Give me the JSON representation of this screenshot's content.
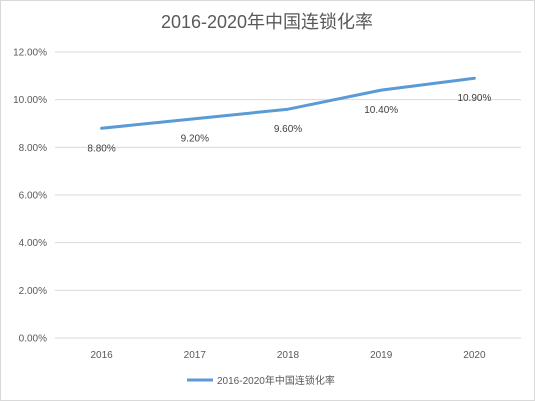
{
  "chart_data": {
    "type": "line",
    "title": "2016-2020年中国连锁化率",
    "categories": [
      "2016",
      "2017",
      "2018",
      "2019",
      "2020"
    ],
    "series": [
      {
        "name": "2016-2020年中国连锁化率",
        "values": [
          8.8,
          9.2,
          9.6,
          10.4,
          10.9
        ],
        "data_labels": [
          "8.80%",
          "9.20%",
          "9.60%",
          "10.40%",
          "10.90%"
        ],
        "color": "#5b9bd5"
      }
    ],
    "y_ticks": [
      "0.00%",
      "2.00%",
      "4.00%",
      "6.00%",
      "8.00%",
      "10.00%",
      "12.00%"
    ],
    "ylim": [
      0,
      12
    ],
    "grid": true,
    "legend_position": "bottom",
    "xlabel": "",
    "ylabel": ""
  }
}
